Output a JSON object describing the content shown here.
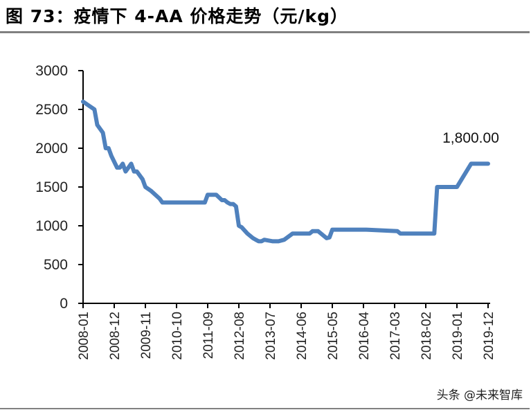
{
  "figure": {
    "title": "图 73：疫情下 4-AA 价格走势（元/kg）",
    "watermark": "头条 @未来智库"
  },
  "colors": {
    "line": "#4f81bd",
    "axis": "#000000",
    "rule": "#808080"
  },
  "chart_data": {
    "type": "line",
    "title": "疫情下 4-AA 价格走势（元/kg）",
    "xlabel": "",
    "ylabel": "",
    "ylim": [
      0,
      3000
    ],
    "yticks": [
      0,
      500,
      1000,
      1500,
      2000,
      2500,
      3000
    ],
    "xticks": [
      "2008-01",
      "2008-12",
      "2009-11",
      "2010-10",
      "2011-09",
      "2012-08",
      "2013-07",
      "2014-06",
      "2015-05",
      "2016-04",
      "2017-03",
      "2018-02",
      "2019-01",
      "2019-12"
    ],
    "grid": false,
    "legend": null,
    "annotations": [
      {
        "x": "2019-12",
        "text": "1,800.00"
      }
    ],
    "series": [
      {
        "name": "4-AA 价格（元/kg）",
        "x": [
          "2008-01",
          "2008-05",
          "2008-06",
          "2008-08",
          "2008-09",
          "2008-10",
          "2008-11",
          "2009-01",
          "2009-02",
          "2009-03",
          "2009-04",
          "2009-05",
          "2009-06",
          "2009-07",
          "2009-08",
          "2009-10",
          "2009-11",
          "2010-01",
          "2010-04",
          "2010-05",
          "2010-06",
          "2010-07",
          "2010-08",
          "2010-10",
          "2011-02",
          "2011-04",
          "2011-05",
          "2011-07",
          "2011-08",
          "2011-09",
          "2011-10",
          "2011-11",
          "2011-12",
          "2012-02",
          "2012-03",
          "2012-04",
          "2012-05",
          "2012-06",
          "2012-07",
          "2012-08",
          "2012-09",
          "2012-10",
          "2012-11",
          "2013-01",
          "2013-02",
          "2013-03",
          "2013-04",
          "2013-05",
          "2013-08",
          "2013-09",
          "2013-10",
          "2013-12",
          "2014-03",
          "2014-04",
          "2014-05",
          "2014-08",
          "2014-09",
          "2014-10",
          "2014-11",
          "2014-12",
          "2015-03",
          "2015-04",
          "2015-05",
          "2016-05",
          "2017-04",
          "2017-05",
          "2018-05",
          "2018-06",
          "2019-01",
          "2019-06",
          "2019-12"
        ],
        "values": [
          2600,
          2500,
          2300,
          2200,
          2000,
          2000,
          1900,
          1750,
          1750,
          1800,
          1700,
          1750,
          1800,
          1700,
          1700,
          1600,
          1500,
          1450,
          1350,
          1300,
          1300,
          1300,
          1300,
          1300,
          1300,
          1300,
          1300,
          1300,
          1300,
          1400,
          1400,
          1400,
          1400,
          1330,
          1330,
          1300,
          1280,
          1280,
          1250,
          1000,
          980,
          940,
          900,
          840,
          820,
          800,
          800,
          820,
          800,
          800,
          800,
          820,
          900,
          900,
          900,
          900,
          900,
          930,
          930,
          930,
          840,
          850,
          950,
          950,
          930,
          900,
          900,
          1500,
          1500,
          1800,
          1800
        ]
      }
    ]
  }
}
